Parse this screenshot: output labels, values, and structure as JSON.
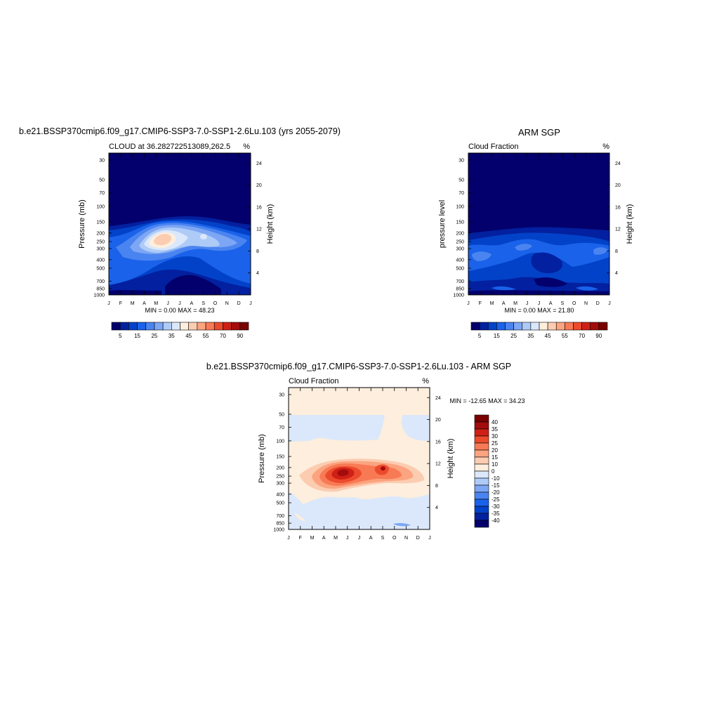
{
  "panels": {
    "model": {
      "title": "b.e21.BSSP370cmip6.f09_g17.CMIP6-SSP3-7.0-SSP1-2.6Lu.103 (yrs 2055-2079)",
      "subtitle": "CLOUD at 36.282722513089,262.5",
      "units": "%",
      "ylabel_left": "Pressure (mb)",
      "ylabel_right": "Height (km)",
      "minmax": "MIN =   0.00 MAX =  48.23"
    },
    "obs": {
      "title": "ARM SGP",
      "subtitle": "Cloud Fraction",
      "units": "%",
      "ylabel_left": "pressure level",
      "ylabel_right": "Height (km)",
      "minmax": "MIN =   0.00 MAX =  21.80"
    },
    "diff": {
      "title": "b.e21.BSSP370cmip6.f09_g17.CMIP6-SSP3-7.0-SSP1-2.6Lu.103 - ARM SGP",
      "subtitle": "Cloud Fraction",
      "units": "%",
      "ylabel_left": "Pressure (mb)",
      "ylabel_right": "Height (km)",
      "minmax": "MIN = -12.65 MAX =  34.23"
    }
  },
  "chart_data": [
    {
      "type": "heatmap",
      "title": "b.e21.BSSP370cmip6.f09_g17.CMIP6-SSP3-7.0-SSP1-2.6Lu.103 (yrs 2055-2079)",
      "subtitle": "CLOUD at 36.282722513089,262.5",
      "xlabel": "",
      "ylabel": "Pressure (mb)",
      "ylabel_right": "Height (km)",
      "x_ticks": [
        "J",
        "F",
        "M",
        "A",
        "M",
        "J",
        "J",
        "A",
        "S",
        "O",
        "N",
        "D",
        "J"
      ],
      "y_ticks": [
        30,
        50,
        70,
        100,
        150,
        200,
        250,
        300,
        400,
        500,
        700,
        850,
        1000
      ],
      "y_right_ticks": [
        4,
        8,
        12,
        16,
        20,
        24
      ],
      "ylim": [
        1000,
        25
      ],
      "y_scale": "log",
      "min": 0.0,
      "max": 48.23,
      "colorbar_labels": [
        "5",
        "15",
        "25",
        "35",
        "45",
        "55",
        "70",
        "90"
      ],
      "colorbar_colors": [
        "#03006d",
        "#02209f",
        "#0242c8",
        "#1a62ea",
        "#4a84f0",
        "#7da6f4",
        "#aecbf8",
        "#dbe8fb",
        "#fdeedd",
        "#fcccb1",
        "#fba47f",
        "#f87a55",
        "#ec4a2c",
        "#cf2016",
        "#a30c0c",
        "#7a0000"
      ]
    },
    {
      "type": "heatmap",
      "title": "ARM SGP",
      "subtitle": "Cloud Fraction",
      "xlabel": "",
      "ylabel": "pressure level",
      "ylabel_right": "Height (km)",
      "x_ticks": [
        "J",
        "F",
        "M",
        "A",
        "M",
        "J",
        "J",
        "A",
        "S",
        "O",
        "N",
        "D",
        "J"
      ],
      "y_ticks": [
        30,
        50,
        70,
        100,
        150,
        200,
        250,
        300,
        400,
        500,
        700,
        850,
        1000
      ],
      "y_right_ticks": [
        4,
        8,
        12,
        16,
        20,
        24
      ],
      "ylim": [
        1000,
        25
      ],
      "y_scale": "log",
      "min": 0.0,
      "max": 21.8,
      "colorbar_labels": [
        "5",
        "15",
        "25",
        "35",
        "45",
        "55",
        "70",
        "90"
      ],
      "colorbar_colors": [
        "#03006d",
        "#02209f",
        "#0242c8",
        "#1a62ea",
        "#4a84f0",
        "#7da6f4",
        "#aecbf8",
        "#dbe8fb",
        "#fdeedd",
        "#fcccb1",
        "#fba47f",
        "#f87a55",
        "#ec4a2c",
        "#cf2016",
        "#a30c0c",
        "#7a0000"
      ]
    },
    {
      "type": "heatmap",
      "title": "b.e21.BSSP370cmip6.f09_g17.CMIP6-SSP3-7.0-SSP1-2.6Lu.103 - ARM SGP",
      "subtitle": "Cloud Fraction",
      "xlabel": "",
      "ylabel": "Pressure (mb)",
      "ylabel_right": "Height (km)",
      "x_ticks": [
        "J",
        "F",
        "M",
        "A",
        "M",
        "J",
        "J",
        "A",
        "S",
        "O",
        "N",
        "D",
        "J"
      ],
      "y_ticks": [
        30,
        50,
        70,
        100,
        150,
        200,
        250,
        300,
        400,
        500,
        700,
        850,
        1000
      ],
      "y_right_ticks": [
        4,
        8,
        12,
        16,
        20,
        24
      ],
      "ylim": [
        1000,
        25
      ],
      "y_scale": "log",
      "min": -12.65,
      "max": 34.23,
      "colorbar_labels": [
        "40",
        "35",
        "30",
        "25",
        "20",
        "15",
        "10",
        "0",
        "-10",
        "-15",
        "-20",
        "-25",
        "-30",
        "-35",
        "-40"
      ],
      "colorbar_colors": [
        "#7a0000",
        "#a30c0c",
        "#cf2016",
        "#ec4a2c",
        "#f87a55",
        "#fba47f",
        "#fcccb1",
        "#fdeedd",
        "#dbe8fb",
        "#aecbf8",
        "#7da6f4",
        "#4a84f0",
        "#1a62ea",
        "#0242c8",
        "#02209f",
        "#03006d"
      ]
    }
  ]
}
